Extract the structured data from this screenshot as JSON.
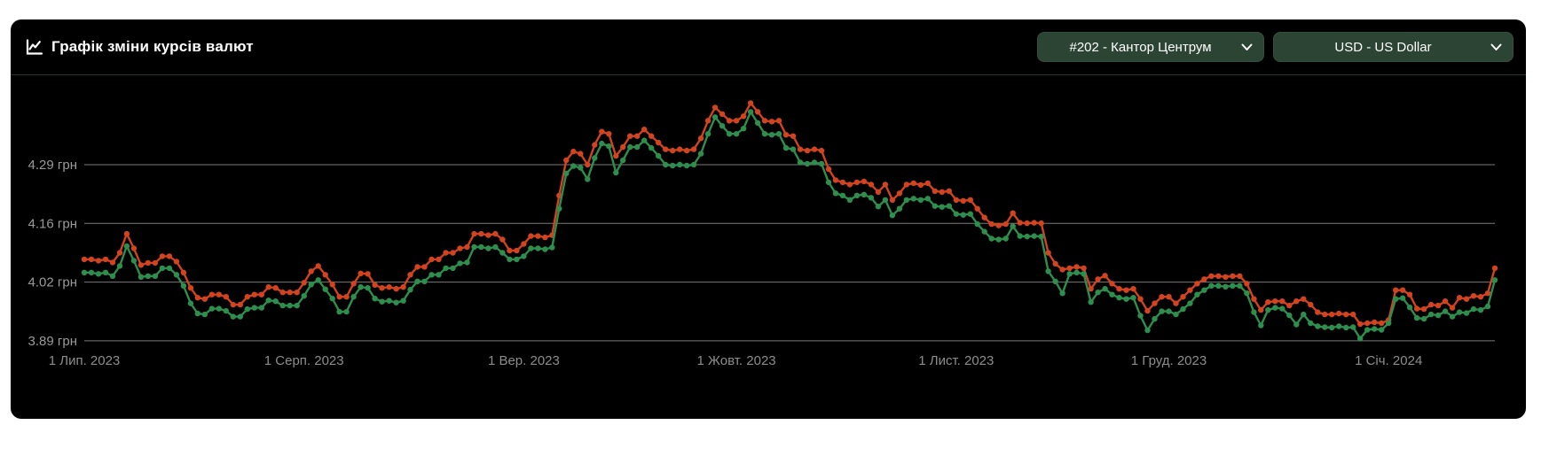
{
  "page": {
    "background": "#ffffff"
  },
  "card": {
    "background": "#000000",
    "separator_color": "#20392a"
  },
  "header": {
    "title": "Графік зміни курсів валют",
    "icon": "line-chart-icon",
    "select_bg": "#2b4433",
    "selects": [
      {
        "id": "branch",
        "value": "#202 - Кантор Центрум"
      },
      {
        "id": "currency",
        "value": "USD - US Dollar"
      }
    ]
  },
  "chart_data": {
    "type": "line",
    "title": "Графік зміни курсів валют",
    "xlabel": "",
    "ylabel": "",
    "grid": "horizontal",
    "legend": "none",
    "marker": "dot",
    "background": "#000000",
    "gridline_color": "#7a7a7a",
    "axis_label_color": "#9a9a9a",
    "y_tick_labels": [
      "4.29 грн",
      "4.16 грн",
      "4.02 грн",
      "3.89 грн"
    ],
    "y_tick_values": [
      4.29,
      4.1567,
      4.0233,
      3.89
    ],
    "ylim": [
      3.85,
      4.46
    ],
    "x_tick_labels": [
      "1 Лип. 2023",
      "1 Серп. 2023",
      "1 Вер. 2023",
      "1 Жовт. 2023",
      "1 Лист. 2023",
      "1 Груд. 2023",
      "1 Січ. 2024"
    ],
    "x_tick_days": [
      0,
      31,
      62,
      92,
      123,
      153,
      184
    ],
    "x_unit": "days from 2023-07-01, one point per day",
    "series": [
      {
        "name": "red",
        "color": "#d2431f",
        "values": [
          4.075,
          4.075,
          4.072,
          4.075,
          4.068,
          4.09,
          4.133,
          4.1,
          4.062,
          4.067,
          4.067,
          4.082,
          4.082,
          4.07,
          4.045,
          4.01,
          3.988,
          3.985,
          3.995,
          3.995,
          3.99,
          3.972,
          3.972,
          3.99,
          3.995,
          3.995,
          4.012,
          4.01,
          4.0,
          4.0,
          4.0,
          4.022,
          4.048,
          4.06,
          4.04,
          4.018,
          3.99,
          3.99,
          4.02,
          4.043,
          4.042,
          4.017,
          4.01,
          4.012,
          4.008,
          4.012,
          4.04,
          4.058,
          4.058,
          4.075,
          4.075,
          4.09,
          4.09,
          4.1,
          4.103,
          4.133,
          4.133,
          4.13,
          4.133,
          4.12,
          4.095,
          4.095,
          4.11,
          4.128,
          4.128,
          4.125,
          4.13,
          4.22,
          4.3,
          4.32,
          4.315,
          4.29,
          4.335,
          4.365,
          4.36,
          4.31,
          4.33,
          4.355,
          4.355,
          4.37,
          4.355,
          4.34,
          4.325,
          4.322,
          4.325,
          4.322,
          4.325,
          4.35,
          4.39,
          4.42,
          4.405,
          4.39,
          4.39,
          4.4,
          4.43,
          4.41,
          4.39,
          4.388,
          4.39,
          4.358,
          4.355,
          4.325,
          4.322,
          4.325,
          4.322,
          4.28,
          4.255,
          4.25,
          4.245,
          4.25,
          4.252,
          4.245,
          4.228,
          4.245,
          4.21,
          4.225,
          4.245,
          4.248,
          4.244,
          4.248,
          4.23,
          4.228,
          4.23,
          4.21,
          4.208,
          4.21,
          4.19,
          4.17,
          4.155,
          4.152,
          4.155,
          4.18,
          4.158,
          4.157,
          4.158,
          4.157,
          4.09,
          4.065,
          4.052,
          4.055,
          4.058,
          4.055,
          4.008,
          4.03,
          4.038,
          4.02,
          4.008,
          4.005,
          4.008,
          3.985,
          3.958,
          3.975,
          3.99,
          3.99,
          3.975,
          3.99,
          4.005,
          4.02,
          4.03,
          4.037,
          4.037,
          4.035,
          4.037,
          4.037,
          4.02,
          3.985,
          3.96,
          3.978,
          3.98,
          3.98,
          3.97,
          3.98,
          3.985,
          3.972,
          3.955,
          3.95,
          3.95,
          3.952,
          3.95,
          3.95,
          3.928,
          3.93,
          3.932,
          3.93,
          3.937,
          4.005,
          4.005,
          3.995,
          3.963,
          3.962,
          3.972,
          3.97,
          3.98,
          3.965,
          3.988,
          3.985,
          3.992,
          3.99,
          3.998,
          4.055
        ]
      },
      {
        "name": "green",
        "color": "#2e8e4d",
        "values": [
          4.045,
          4.045,
          4.042,
          4.045,
          4.037,
          4.06,
          4.105,
          4.072,
          4.035,
          4.037,
          4.037,
          4.055,
          4.055,
          4.04,
          4.015,
          3.975,
          3.952,
          3.95,
          3.963,
          3.963,
          3.958,
          3.945,
          3.945,
          3.962,
          3.965,
          3.965,
          3.982,
          3.98,
          3.97,
          3.97,
          3.97,
          3.992,
          4.018,
          4.028,
          4.007,
          3.986,
          3.956,
          3.956,
          3.99,
          4.012,
          4.01,
          3.986,
          3.979,
          3.981,
          3.977,
          3.981,
          4.006,
          4.025,
          4.025,
          4.04,
          4.04,
          4.055,
          4.055,
          4.066,
          4.068,
          4.103,
          4.103,
          4.1,
          4.103,
          4.09,
          4.075,
          4.075,
          4.082,
          4.1,
          4.1,
          4.098,
          4.102,
          4.19,
          4.27,
          4.287,
          4.283,
          4.257,
          4.305,
          4.338,
          4.332,
          4.272,
          4.3,
          4.33,
          4.33,
          4.345,
          4.328,
          4.31,
          4.29,
          4.288,
          4.29,
          4.288,
          4.29,
          4.315,
          4.36,
          4.398,
          4.378,
          4.36,
          4.36,
          4.372,
          4.41,
          4.385,
          4.36,
          4.358,
          4.36,
          4.328,
          4.325,
          4.295,
          4.292,
          4.295,
          4.292,
          4.25,
          4.225,
          4.22,
          4.21,
          4.22,
          4.222,
          4.215,
          4.195,
          4.21,
          4.175,
          4.19,
          4.21,
          4.213,
          4.21,
          4.213,
          4.196,
          4.194,
          4.196,
          4.178,
          4.176,
          4.178,
          4.155,
          4.138,
          4.122,
          4.12,
          4.122,
          4.15,
          4.128,
          4.127,
          4.128,
          4.127,
          4.048,
          4.025,
          3.998,
          4.042,
          4.045,
          4.042,
          3.978,
          4.0,
          4.008,
          3.995,
          3.988,
          3.985,
          3.988,
          3.947,
          3.914,
          3.94,
          3.957,
          3.957,
          3.95,
          3.962,
          3.975,
          3.995,
          4.005,
          4.015,
          4.015,
          4.013,
          4.015,
          4.015,
          3.998,
          3.955,
          3.925,
          3.96,
          3.965,
          3.963,
          3.948,
          3.927,
          3.95,
          3.93,
          3.923,
          3.921,
          3.92,
          3.923,
          3.92,
          3.921,
          3.895,
          3.915,
          3.917,
          3.915,
          3.93,
          3.985,
          3.987,
          3.966,
          3.942,
          3.94,
          3.95,
          3.948,
          3.957,
          3.945,
          3.955,
          3.953,
          3.962,
          3.96,
          3.968,
          4.028
        ]
      }
    ]
  }
}
